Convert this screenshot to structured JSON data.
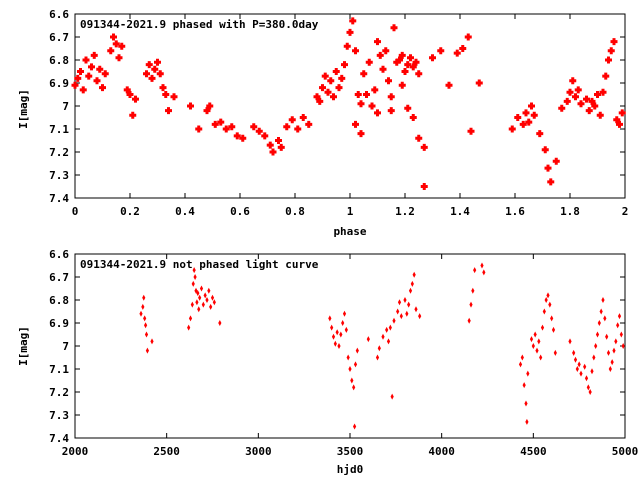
{
  "chart_data": [
    {
      "type": "scatter",
      "title": "091344-2021.9 phased with P=380.0day",
      "xlabel": "phase",
      "ylabel": "I[mag]",
      "xlim": [
        0,
        2
      ],
      "ylim": [
        7.4,
        6.6
      ],
      "y_inverted": true,
      "xticks": [
        0,
        0.2,
        0.4,
        0.6,
        0.8,
        1,
        1.2,
        1.4,
        1.6,
        1.8,
        2
      ],
      "xtick_labels": [
        "0",
        "0.2",
        "0.4",
        "0.6",
        "0.8",
        "1",
        "1.2",
        "1.4",
        "1.6",
        "1.8",
        "2"
      ],
      "yticks": [
        6.6,
        6.7,
        6.8,
        6.9,
        7.0,
        7.1,
        7.2,
        7.3,
        7.4
      ],
      "ytick_labels": [
        "6.6",
        "6.7",
        "6.8",
        "6.9",
        "7",
        "7.1",
        "7.2",
        "7.3",
        "7.4"
      ],
      "grid": false,
      "marker_color": "#ff0000",
      "points": [
        [
          0.0,
          6.91
        ],
        [
          0.01,
          6.88
        ],
        [
          0.02,
          6.85
        ],
        [
          0.03,
          6.93
        ],
        [
          0.04,
          6.8
        ],
        [
          0.05,
          6.87
        ],
        [
          0.06,
          6.83
        ],
        [
          0.07,
          6.78
        ],
        [
          0.08,
          6.89
        ],
        [
          0.09,
          6.84
        ],
        [
          0.1,
          6.92
        ],
        [
          0.11,
          6.86
        ],
        [
          0.13,
          6.76
        ],
        [
          0.14,
          6.7
        ],
        [
          0.15,
          6.73
        ],
        [
          0.16,
          6.79
        ],
        [
          0.17,
          6.74
        ],
        [
          0.19,
          6.93
        ],
        [
          0.2,
          6.95
        ],
        [
          0.21,
          7.04
        ],
        [
          0.22,
          6.97
        ],
        [
          0.26,
          6.86
        ],
        [
          0.27,
          6.82
        ],
        [
          0.28,
          6.88
        ],
        [
          0.29,
          6.84
        ],
        [
          0.3,
          6.81
        ],
        [
          0.31,
          6.86
        ],
        [
          0.32,
          6.92
        ],
        [
          0.33,
          6.95
        ],
        [
          0.34,
          7.02
        ],
        [
          0.36,
          6.96
        ],
        [
          0.42,
          7.0
        ],
        [
          0.45,
          7.1
        ],
        [
          0.48,
          7.02
        ],
        [
          0.49,
          7.0
        ],
        [
          0.51,
          7.08
        ],
        [
          0.53,
          7.07
        ],
        [
          0.55,
          7.1
        ],
        [
          0.57,
          7.09
        ],
        [
          0.59,
          7.13
        ],
        [
          0.61,
          7.14
        ],
        [
          0.65,
          7.09
        ],
        [
          0.67,
          7.11
        ],
        [
          0.69,
          7.13
        ],
        [
          0.71,
          7.17
        ],
        [
          0.72,
          7.2
        ],
        [
          0.74,
          7.15
        ],
        [
          0.75,
          7.18
        ],
        [
          0.77,
          7.09
        ],
        [
          0.79,
          7.06
        ],
        [
          0.81,
          7.1
        ],
        [
          0.83,
          7.05
        ],
        [
          0.85,
          7.08
        ],
        [
          0.88,
          6.96
        ],
        [
          0.89,
          6.98
        ],
        [
          0.9,
          6.92
        ],
        [
          0.91,
          6.87
        ],
        [
          0.92,
          6.94
        ],
        [
          0.93,
          6.89
        ],
        [
          0.94,
          6.96
        ],
        [
          0.95,
          6.85
        ],
        [
          0.96,
          6.92
        ],
        [
          0.97,
          6.88
        ],
        [
          0.98,
          6.82
        ],
        [
          0.99,
          6.74
        ],
        [
          1.0,
          6.68
        ],
        [
          1.01,
          6.63
        ],
        [
          1.02,
          6.76
        ],
        [
          1.03,
          6.95
        ],
        [
          1.04,
          6.99
        ],
        [
          1.05,
          6.86
        ],
        [
          1.06,
          6.95
        ],
        [
          1.07,
          6.81
        ],
        [
          1.08,
          7.0
        ],
        [
          1.09,
          6.93
        ],
        [
          1.1,
          6.72
        ],
        [
          1.11,
          6.78
        ],
        [
          1.12,
          6.84
        ],
        [
          1.13,
          6.76
        ],
        [
          1.14,
          6.89
        ],
        [
          1.15,
          6.96
        ],
        [
          1.16,
          6.66
        ],
        [
          1.17,
          6.81
        ],
        [
          1.18,
          6.8
        ],
        [
          1.19,
          6.78
        ],
        [
          1.2,
          6.85
        ],
        [
          1.21,
          6.82
        ],
        [
          1.22,
          6.79
        ],
        [
          1.23,
          6.83
        ],
        [
          1.24,
          6.81
        ],
        [
          1.25,
          6.86
        ],
        [
          1.02,
          7.08
        ],
        [
          1.04,
          7.12
        ],
        [
          1.1,
          7.03
        ],
        [
          1.15,
          7.02
        ],
        [
          1.19,
          6.91
        ],
        [
          1.21,
          7.01
        ],
        [
          1.23,
          7.05
        ],
        [
          1.25,
          7.14
        ],
        [
          1.27,
          7.18
        ],
        [
          1.27,
          7.35
        ],
        [
          1.3,
          6.79
        ],
        [
          1.33,
          6.76
        ],
        [
          1.36,
          6.91
        ],
        [
          1.39,
          6.77
        ],
        [
          1.41,
          6.75
        ],
        [
          1.43,
          6.7
        ],
        [
          1.44,
          7.11
        ],
        [
          1.47,
          6.9
        ],
        [
          1.59,
          7.1
        ],
        [
          1.61,
          7.05
        ],
        [
          1.63,
          7.08
        ],
        [
          1.64,
          7.03
        ],
        [
          1.65,
          7.07
        ],
        [
          1.66,
          7.0
        ],
        [
          1.67,
          7.04
        ],
        [
          1.69,
          7.12
        ],
        [
          1.71,
          7.19
        ],
        [
          1.72,
          7.27
        ],
        [
          1.73,
          7.33
        ],
        [
          1.75,
          7.24
        ],
        [
          1.77,
          7.01
        ],
        [
          1.79,
          6.98
        ],
        [
          1.8,
          6.94
        ],
        [
          1.81,
          6.89
        ],
        [
          1.82,
          6.96
        ],
        [
          1.83,
          6.93
        ],
        [
          1.84,
          6.99
        ],
        [
          1.86,
          6.97
        ],
        [
          1.87,
          7.02
        ],
        [
          1.88,
          6.98
        ],
        [
          1.89,
          7.0
        ],
        [
          1.9,
          6.95
        ],
        [
          1.91,
          7.04
        ],
        [
          1.92,
          6.94
        ],
        [
          1.93,
          6.87
        ],
        [
          1.94,
          6.8
        ],
        [
          1.95,
          6.76
        ],
        [
          1.96,
          6.72
        ],
        [
          1.97,
          7.06
        ],
        [
          1.98,
          7.08
        ],
        [
          1.99,
          7.03
        ]
      ]
    },
    {
      "type": "scatter",
      "title": "091344-2021.9 not phased light curve",
      "xlabel": "hjd0",
      "ylabel": "I[mag]",
      "xlim": [
        2000,
        5000
      ],
      "ylim": [
        7.4,
        6.6
      ],
      "y_inverted": true,
      "xticks": [
        2000,
        2500,
        3000,
        3500,
        4000,
        4500,
        5000
      ],
      "xtick_labels": [
        "2000",
        "2500",
        "3000",
        "3500",
        "4000",
        "4500",
        "5000"
      ],
      "yticks": [
        6.6,
        6.7,
        6.8,
        6.9,
        7.0,
        7.1,
        7.2,
        7.3,
        7.4
      ],
      "ytick_labels": [
        "6.6",
        "6.7",
        "6.8",
        "6.9",
        "7",
        "7.1",
        "7.2",
        "7.3",
        "7.4"
      ],
      "grid": false,
      "marker_color": "#ff0000",
      "points": [
        [
          2360,
          6.86
        ],
        [
          2370,
          6.83
        ],
        [
          2375,
          6.79
        ],
        [
          2380,
          6.88
        ],
        [
          2385,
          6.91
        ],
        [
          2390,
          6.95
        ],
        [
          2395,
          7.02
        ],
        [
          2420,
          6.98
        ],
        [
          2620,
          6.92
        ],
        [
          2630,
          6.88
        ],
        [
          2640,
          6.82
        ],
        [
          2645,
          6.73
        ],
        [
          2650,
          6.67
        ],
        [
          2655,
          6.7
        ],
        [
          2660,
          6.76
        ],
        [
          2665,
          6.81
        ],
        [
          2670,
          6.77
        ],
        [
          2675,
          6.84
        ],
        [
          2680,
          6.79
        ],
        [
          2690,
          6.75
        ],
        [
          2700,
          6.82
        ],
        [
          2710,
          6.78
        ],
        [
          2720,
          6.8
        ],
        [
          2730,
          6.76
        ],
        [
          2740,
          6.83
        ],
        [
          2750,
          6.79
        ],
        [
          2760,
          6.81
        ],
        [
          2790,
          6.9
        ],
        [
          3390,
          6.88
        ],
        [
          3400,
          6.92
        ],
        [
          3410,
          6.96
        ],
        [
          3420,
          6.99
        ],
        [
          3430,
          6.94
        ],
        [
          3440,
          7.0
        ],
        [
          3450,
          6.95
        ],
        [
          3460,
          6.9
        ],
        [
          3470,
          6.86
        ],
        [
          3480,
          6.93
        ],
        [
          3490,
          7.05
        ],
        [
          3500,
          7.1
        ],
        [
          3510,
          7.15
        ],
        [
          3520,
          7.18
        ],
        [
          3525,
          7.35
        ],
        [
          3530,
          7.08
        ],
        [
          3540,
          7.02
        ],
        [
          3600,
          6.97
        ],
        [
          3650,
          7.05
        ],
        [
          3660,
          7.01
        ],
        [
          3680,
          6.96
        ],
        [
          3700,
          6.93
        ],
        [
          3710,
          6.98
        ],
        [
          3720,
          6.92
        ],
        [
          3730,
          7.22
        ],
        [
          3740,
          6.89
        ],
        [
          3760,
          6.85
        ],
        [
          3770,
          6.81
        ],
        [
          3780,
          6.87
        ],
        [
          3800,
          6.8
        ],
        [
          3810,
          6.86
        ],
        [
          3820,
          6.82
        ],
        [
          3830,
          6.76
        ],
        [
          3840,
          6.73
        ],
        [
          3850,
          6.69
        ],
        [
          3860,
          6.84
        ],
        [
          3880,
          6.87
        ],
        [
          4150,
          6.89
        ],
        [
          4160,
          6.82
        ],
        [
          4170,
          6.76
        ],
        [
          4180,
          6.67
        ],
        [
          4220,
          6.65
        ],
        [
          4230,
          6.68
        ],
        [
          4430,
          7.08
        ],
        [
          4440,
          7.05
        ],
        [
          4450,
          7.17
        ],
        [
          4460,
          7.25
        ],
        [
          4465,
          7.33
        ],
        [
          4470,
          7.12
        ],
        [
          4490,
          6.97
        ],
        [
          4500,
          7.0
        ],
        [
          4510,
          6.95
        ],
        [
          4520,
          7.02
        ],
        [
          4530,
          6.98
        ],
        [
          4540,
          7.05
        ],
        [
          4550,
          6.92
        ],
        [
          4560,
          6.85
        ],
        [
          4570,
          6.8
        ],
        [
          4580,
          6.78
        ],
        [
          4590,
          6.82
        ],
        [
          4600,
          6.88
        ],
        [
          4610,
          6.93
        ],
        [
          4620,
          7.03
        ],
        [
          4700,
          6.98
        ],
        [
          4720,
          7.03
        ],
        [
          4730,
          7.06
        ],
        [
          4740,
          7.1
        ],
        [
          4750,
          7.08
        ],
        [
          4760,
          7.12
        ],
        [
          4780,
          7.09
        ],
        [
          4790,
          7.14
        ],
        [
          4800,
          7.18
        ],
        [
          4810,
          7.2
        ],
        [
          4820,
          7.11
        ],
        [
          4830,
          7.05
        ],
        [
          4840,
          7.0
        ],
        [
          4850,
          6.95
        ],
        [
          4860,
          6.9
        ],
        [
          4870,
          6.85
        ],
        [
          4880,
          6.8
        ],
        [
          4890,
          6.88
        ],
        [
          4900,
          6.96
        ],
        [
          4910,
          7.03
        ],
        [
          4920,
          7.1
        ],
        [
          4930,
          7.07
        ],
        [
          4940,
          7.02
        ],
        [
          4950,
          6.98
        ],
        [
          4960,
          6.91
        ],
        [
          4970,
          6.87
        ],
        [
          4980,
          6.95
        ],
        [
          4990,
          7.0
        ]
      ]
    }
  ]
}
